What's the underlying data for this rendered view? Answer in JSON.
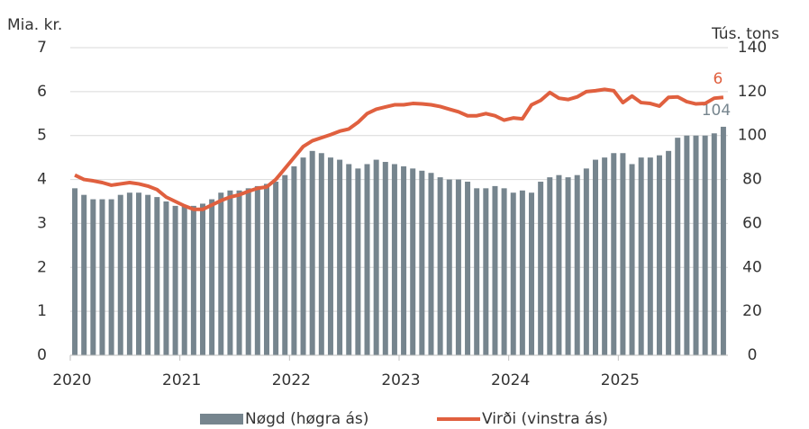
{
  "chart_data": {
    "type": "bar_line",
    "y_label": "Mia. kr.",
    "y2_label": "Tús. tons",
    "categories": [
      "2020",
      null,
      null,
      null,
      null,
      null,
      null,
      null,
      null,
      null,
      null,
      null,
      "2021",
      null,
      null,
      null,
      null,
      null,
      null,
      null,
      null,
      null,
      null,
      null,
      "2022",
      null,
      null,
      null,
      null,
      null,
      null,
      null,
      null,
      null,
      null,
      null,
      "2023",
      null,
      null,
      null,
      null,
      null,
      null,
      null,
      null,
      null,
      null,
      null,
      "2024",
      null,
      null,
      null,
      null,
      null,
      null,
      null,
      null,
      null,
      null,
      null,
      "2025",
      null,
      null,
      null,
      null,
      null,
      null,
      null,
      null,
      null,
      null,
      null
    ],
    "ylim": [
      0,
      7
    ],
    "yticks": [
      0,
      1,
      2,
      3,
      4,
      5,
      6,
      7
    ],
    "y2lim": [
      0,
      140
    ],
    "y2ticks": [
      0,
      20,
      40,
      60,
      80,
      100,
      120,
      140
    ],
    "grid": true,
    "legend": "bottom",
    "series": [
      {
        "name": "Nøgd (høgra ás)",
        "type": "bar",
        "axis": "y2",
        "color": "#76858e",
        "values": [
          76,
          73,
          71,
          71,
          71,
          73,
          74,
          74,
          73,
          72,
          70,
          68,
          68,
          68,
          69,
          71,
          74,
          75,
          75,
          76,
          77,
          78,
          79,
          82,
          86,
          90,
          93,
          92,
          90,
          89,
          87,
          85,
          87,
          89,
          88,
          87,
          86,
          85,
          84,
          83,
          81,
          80,
          80,
          79,
          76,
          76,
          77,
          76,
          74,
          75,
          74,
          79,
          81,
          82,
          81,
          82,
          85,
          89,
          90,
          92,
          92,
          87,
          90,
          90,
          91,
          93,
          99,
          100,
          100,
          100,
          101,
          104
        ],
        "value_labels": [
          null,
          null,
          null,
          null,
          null,
          null,
          null,
          null,
          null,
          null,
          null,
          null,
          null,
          null,
          null,
          null,
          null,
          null,
          null,
          null,
          null,
          null,
          null,
          null,
          null,
          null,
          null,
          null,
          null,
          null,
          null,
          null,
          null,
          null,
          null,
          null,
          null,
          null,
          null,
          null,
          null,
          null,
          null,
          null,
          null,
          null,
          null,
          null,
          null,
          null,
          null,
          null,
          null,
          null,
          null,
          null,
          null,
          null,
          null,
          null,
          null,
          null,
          null,
          null,
          null,
          null,
          null,
          null,
          null,
          null,
          null,
          "104"
        ]
      },
      {
        "name": "Virði (vinstra ás)",
        "type": "line",
        "axis": "y",
        "color": "#e0603f",
        "values": [
          4.1,
          4.0,
          3.97,
          3.93,
          3.87,
          3.9,
          3.93,
          3.9,
          3.85,
          3.77,
          3.6,
          3.5,
          3.4,
          3.32,
          3.32,
          3.42,
          3.52,
          3.6,
          3.65,
          3.73,
          3.8,
          3.83,
          4.0,
          4.25,
          4.5,
          4.75,
          4.88,
          4.95,
          5.02,
          5.1,
          5.15,
          5.3,
          5.5,
          5.6,
          5.65,
          5.7,
          5.7,
          5.73,
          5.72,
          5.7,
          5.66,
          5.6,
          5.54,
          5.45,
          5.45,
          5.5,
          5.45,
          5.35,
          5.4,
          5.38,
          5.7,
          5.8,
          5.98,
          5.85,
          5.82,
          5.88,
          6.0,
          6.02,
          6.05,
          6.02,
          5.75,
          5.9,
          5.75,
          5.73,
          5.67,
          5.87,
          5.88,
          5.77,
          5.72,
          5.73,
          5.85,
          5.87
        ],
        "value_labels": [
          null,
          null,
          null,
          null,
          null,
          null,
          null,
          null,
          null,
          null,
          null,
          null,
          null,
          null,
          null,
          null,
          null,
          null,
          null,
          null,
          null,
          null,
          null,
          null,
          null,
          null,
          null,
          null,
          null,
          null,
          null,
          null,
          null,
          null,
          null,
          null,
          null,
          null,
          null,
          null,
          null,
          null,
          null,
          null,
          null,
          null,
          null,
          null,
          null,
          null,
          null,
          null,
          null,
          null,
          null,
          null,
          null,
          null,
          null,
          null,
          null,
          null,
          null,
          null,
          null,
          null,
          null,
          null,
          null,
          null,
          null,
          "6"
        ]
      }
    ]
  }
}
